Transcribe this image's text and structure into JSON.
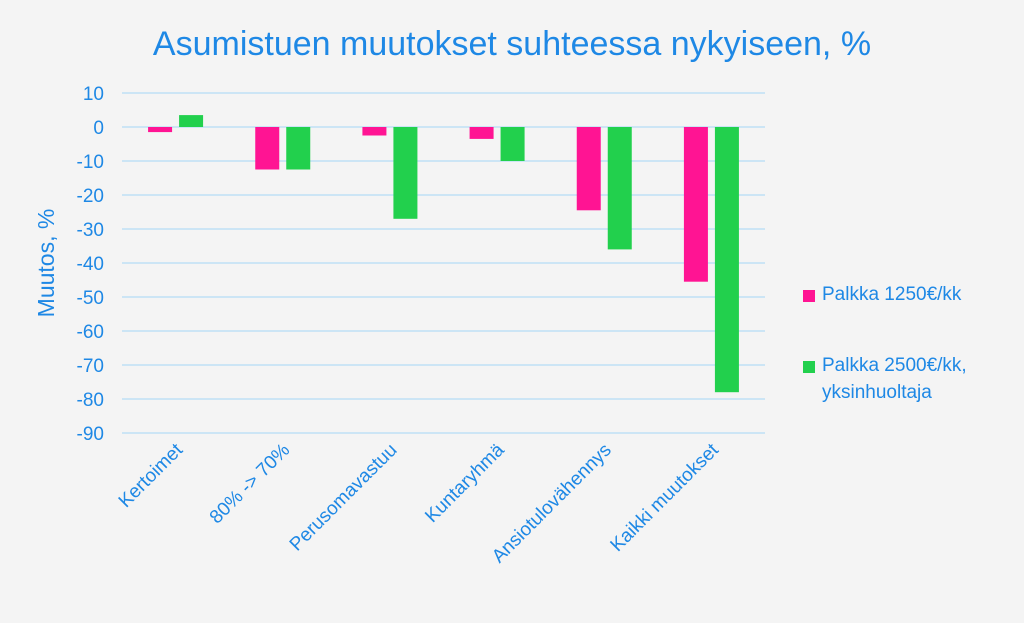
{
  "chart_data": {
    "type": "bar",
    "title": "Asumistuen muutokset suhteessa nykyiseen, %",
    "ylabel": "Muutos, %",
    "xlabel": "",
    "categories": [
      "Kertoimet",
      "80% -> 70%",
      "Perusomavastuu",
      "Kuntaryhmä",
      "Ansiotulovähennys",
      "Kaikki muutokset"
    ],
    "series": [
      {
        "name": "Palkka 1250€/kk",
        "color": "#ff1493",
        "values": [
          -1.5,
          -12.5,
          -2.5,
          -3.5,
          -24.5,
          -45.5
        ]
      },
      {
        "name": "Palkka 2500€/kk, yksinhuoltaja",
        "color": "#22d04d",
        "values": [
          3.5,
          -12.5,
          -27,
          -10,
          -36,
          -78
        ]
      }
    ],
    "ylim": [
      -90,
      10
    ],
    "yticks": [
      "10",
      "0",
      "-10",
      "-20",
      "-30",
      "-40",
      "-50",
      "-60",
      "-70",
      "-80",
      "-90"
    ],
    "grid": true,
    "legend_position": "right",
    "text_color": "#1e88e5",
    "grid_color": "#b3dcf5"
  }
}
